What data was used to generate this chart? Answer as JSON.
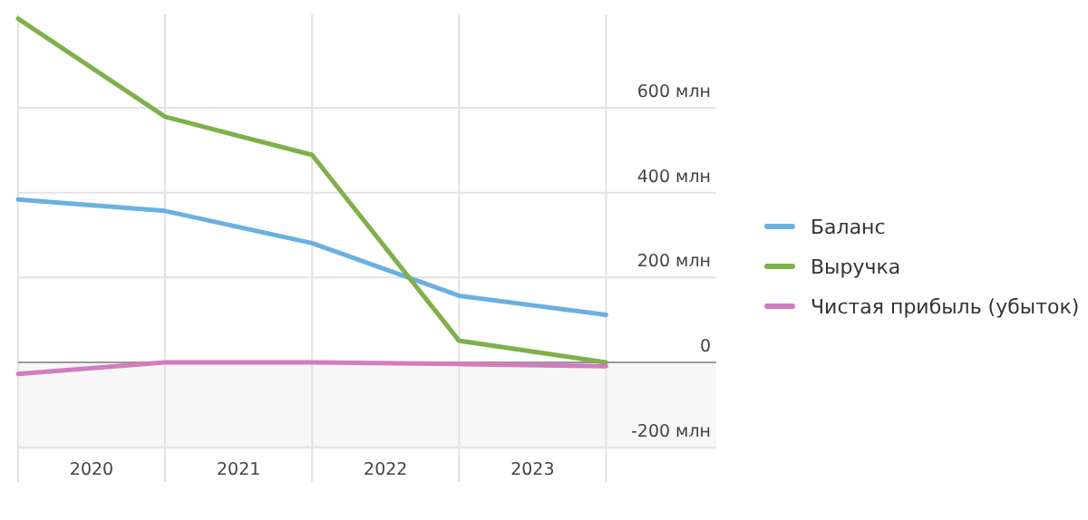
{
  "chart_data": {
    "type": "line",
    "x": [
      2020,
      2021,
      2022,
      2023,
      2024
    ],
    "xlim": [
      2020,
      2024.75
    ],
    "xticks": [
      {
        "value": 2020,
        "label": null
      },
      {
        "value": 2020.5,
        "label": "2020"
      },
      {
        "value": 2021,
        "label": null
      },
      {
        "value": 2021.5,
        "label": "2021"
      },
      {
        "value": 2022,
        "label": null
      },
      {
        "value": 2022.5,
        "label": "2022"
      },
      {
        "value": 2023,
        "label": null
      },
      {
        "value": 2023.5,
        "label": "2023"
      },
      {
        "value": 2024,
        "label": null
      }
    ],
    "ylim": [
      -205,
      820
    ],
    "yticks": [
      {
        "value": -200,
        "label": "-200 млн"
      },
      0,
      {
        "value": 200,
        "label": "200 млн"
      },
      {
        "value": 400,
        "label": "400 млн"
      },
      {
        "value": 600,
        "label": "600 млн"
      }
    ],
    "grid": true,
    "legend": "right",
    "bands": [
      {
        "axis": "y",
        "from": -205,
        "to": 0,
        "color": "#f7f7f7"
      }
    ],
    "ref_lines": [
      {
        "axis": "y",
        "value": 0,
        "color": "#999999"
      }
    ],
    "series": [
      {
        "name": "Баланс",
        "color": "#6ab0e0",
        "values": [
          384,
          357,
          281,
          157,
          112
        ]
      },
      {
        "name": "Выручка",
        "color": "#7fb04a",
        "values": [
          810,
          579,
          489,
          51,
          0
        ]
      },
      {
        "name": "Чистая прибыль (убыток)",
        "color": "#d27cc0",
        "values": [
          -27,
          0,
          0,
          -4,
          -9
        ]
      }
    ]
  }
}
